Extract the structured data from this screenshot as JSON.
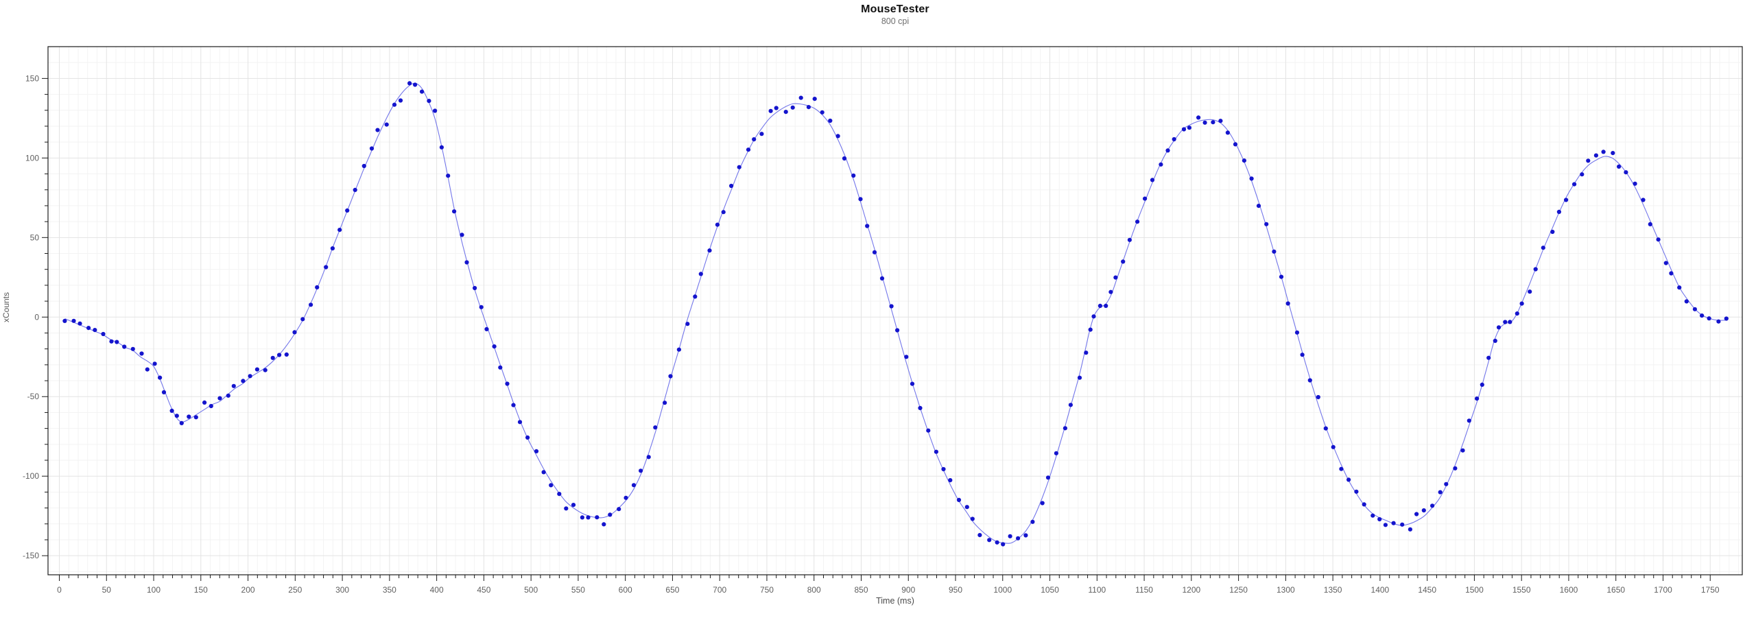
{
  "header": {
    "window_title": "MouseTester"
  },
  "chart_data": {
    "type": "scatter",
    "title": "MouseTester",
    "subtitle": "800 cpi",
    "xlabel": "Time (ms)",
    "ylabel": "xCounts",
    "xlim": [
      -12,
      1784
    ],
    "ylim": [
      -162,
      170
    ],
    "x_ticks": {
      "min": 0,
      "max": 1750,
      "major_step": 50,
      "minor_step": 10
    },
    "y_ticks": {
      "min": -150,
      "max": 150,
      "major_step": 50,
      "minor_step": 10
    },
    "grid": true,
    "legend_position": "none",
    "colors": {
      "marker": "#1414cd",
      "line": "#6467e8",
      "grid_major": "#e3e3e3",
      "grid_minor": "#f3f3f3",
      "axis": "#1a1a1a",
      "tick_label": "#5f5f5f"
    },
    "noise": {
      "seed": 20,
      "base_amp": 2.1,
      "peak_amp": 3.4,
      "outlier_rate": 0.09,
      "outlier_amp": 6.5,
      "t_jitter": 1.4
    },
    "series": [
      {
        "name": "xCounts",
        "anchors": [
          [
            6,
            -1
          ],
          [
            14,
            -3
          ],
          [
            22,
            -5
          ],
          [
            30,
            -7
          ],
          [
            38,
            -9
          ],
          [
            46,
            -11
          ],
          [
            54,
            -14
          ],
          [
            62,
            -16
          ],
          [
            70,
            -19
          ],
          [
            78,
            -21
          ],
          [
            86,
            -25
          ],
          [
            94,
            -28
          ],
          [
            100,
            -31
          ],
          [
            106,
            -38
          ],
          [
            112,
            -47
          ],
          [
            118,
            -56
          ],
          [
            124,
            -63
          ],
          [
            130,
            -66
          ],
          [
            138,
            -64
          ],
          [
            146,
            -61
          ],
          [
            154,
            -58
          ],
          [
            162,
            -55
          ],
          [
            170,
            -53
          ],
          [
            178,
            -49
          ],
          [
            186,
            -45
          ],
          [
            194,
            -42
          ],
          [
            202,
            -38
          ],
          [
            210,
            -35
          ],
          [
            218,
            -32
          ],
          [
            226,
            -28
          ],
          [
            234,
            -23
          ],
          [
            242,
            -17
          ],
          [
            250,
            -10
          ],
          [
            258,
            -2
          ],
          [
            266,
            8
          ],
          [
            274,
            19
          ],
          [
            282,
            31
          ],
          [
            290,
            44
          ],
          [
            298,
            56
          ],
          [
            306,
            68
          ],
          [
            314,
            80
          ],
          [
            322,
            92
          ],
          [
            330,
            103
          ],
          [
            338,
            114
          ],
          [
            346,
            124
          ],
          [
            354,
            133
          ],
          [
            362,
            140
          ],
          [
            370,
            145
          ],
          [
            377,
            147
          ],
          [
            384,
            144
          ],
          [
            391,
            136
          ],
          [
            398,
            125
          ],
          [
            405,
            108
          ],
          [
            412,
            88
          ],
          [
            419,
            67
          ],
          [
            426,
            49
          ],
          [
            433,
            33
          ],
          [
            440,
            18
          ],
          [
            447,
            5
          ],
          [
            454,
            -7
          ],
          [
            461,
            -19
          ],
          [
            468,
            -31
          ],
          [
            475,
            -43
          ],
          [
            482,
            -55
          ],
          [
            489,
            -66
          ],
          [
            497,
            -77
          ],
          [
            505,
            -86
          ],
          [
            513,
            -95
          ],
          [
            521,
            -103
          ],
          [
            529,
            -110
          ],
          [
            537,
            -116
          ],
          [
            545,
            -120
          ],
          [
            553,
            -123
          ],
          [
            561,
            -125
          ],
          [
            569,
            -126
          ],
          [
            577,
            -126
          ],
          [
            585,
            -124
          ],
          [
            593,
            -120
          ],
          [
            601,
            -115
          ],
          [
            609,
            -108
          ],
          [
            617,
            -98
          ],
          [
            625,
            -85
          ],
          [
            633,
            -70
          ],
          [
            641,
            -53
          ],
          [
            649,
            -36
          ],
          [
            657,
            -20
          ],
          [
            665,
            -3
          ],
          [
            673,
            12
          ],
          [
            681,
            27
          ],
          [
            689,
            42
          ],
          [
            697,
            56
          ],
          [
            705,
            69
          ],
          [
            713,
            81
          ],
          [
            721,
            93
          ],
          [
            729,
            103
          ],
          [
            737,
            112
          ],
          [
            745,
            119
          ],
          [
            753,
            125
          ],
          [
            761,
            129
          ],
          [
            769,
            132
          ],
          [
            777,
            134
          ],
          [
            785,
            134
          ],
          [
            793,
            133
          ],
          [
            801,
            131
          ],
          [
            809,
            127
          ],
          [
            817,
            121
          ],
          [
            825,
            112
          ],
          [
            833,
            101
          ],
          [
            841,
            88
          ],
          [
            849,
            73
          ],
          [
            857,
            57
          ],
          [
            865,
            41
          ],
          [
            873,
            24
          ],
          [
            881,
            7
          ],
          [
            889,
            -10
          ],
          [
            897,
            -27
          ],
          [
            905,
            -43
          ],
          [
            913,
            -58
          ],
          [
            921,
            -72
          ],
          [
            929,
            -85
          ],
          [
            937,
            -96
          ],
          [
            945,
            -106
          ],
          [
            953,
            -115
          ],
          [
            961,
            -122
          ],
          [
            969,
            -129
          ],
          [
            977,
            -134
          ],
          [
            985,
            -138
          ],
          [
            993,
            -141
          ],
          [
            1001,
            -142
          ],
          [
            1009,
            -142
          ],
          [
            1017,
            -139
          ],
          [
            1025,
            -134
          ],
          [
            1033,
            -126
          ],
          [
            1041,
            -115
          ],
          [
            1049,
            -102
          ],
          [
            1057,
            -87
          ],
          [
            1065,
            -71
          ],
          [
            1073,
            -54
          ],
          [
            1081,
            -37
          ],
          [
            1087,
            -22
          ],
          [
            1092,
            -9
          ],
          [
            1097,
            1
          ],
          [
            1103,
            6
          ],
          [
            1109,
            8
          ],
          [
            1115,
            14
          ],
          [
            1121,
            24
          ],
          [
            1128,
            36
          ],
          [
            1135,
            48
          ],
          [
            1143,
            61
          ],
          [
            1151,
            73
          ],
          [
            1159,
            85
          ],
          [
            1167,
            96
          ],
          [
            1175,
            105
          ],
          [
            1183,
            112
          ],
          [
            1191,
            118
          ],
          [
            1199,
            121
          ],
          [
            1207,
            123
          ],
          [
            1215,
            124
          ],
          [
            1223,
            124
          ],
          [
            1231,
            122
          ],
          [
            1239,
            117
          ],
          [
            1247,
            109
          ],
          [
            1255,
            99
          ],
          [
            1263,
            87
          ],
          [
            1271,
            73
          ],
          [
            1279,
            58
          ],
          [
            1287,
            42
          ],
          [
            1295,
            26
          ],
          [
            1303,
            9
          ],
          [
            1311,
            -8
          ],
          [
            1319,
            -25
          ],
          [
            1327,
            -41
          ],
          [
            1335,
            -56
          ],
          [
            1343,
            -70
          ],
          [
            1351,
            -82
          ],
          [
            1359,
            -93
          ],
          [
            1367,
            -103
          ],
          [
            1375,
            -111
          ],
          [
            1383,
            -118
          ],
          [
            1391,
            -123
          ],
          [
            1399,
            -126
          ],
          [
            1407,
            -128
          ],
          [
            1415,
            -130
          ],
          [
            1423,
            -131
          ],
          [
            1431,
            -130
          ],
          [
            1439,
            -128
          ],
          [
            1447,
            -125
          ],
          [
            1455,
            -120
          ],
          [
            1463,
            -114
          ],
          [
            1471,
            -105
          ],
          [
            1479,
            -94
          ],
          [
            1487,
            -81
          ],
          [
            1495,
            -67
          ],
          [
            1503,
            -53
          ],
          [
            1509,
            -41
          ],
          [
            1515,
            -28
          ],
          [
            1521,
            -15
          ],
          [
            1527,
            -7
          ],
          [
            1533,
            -4
          ],
          [
            1539,
            -3
          ],
          [
            1545,
            2
          ],
          [
            1551,
            10
          ],
          [
            1558,
            20
          ],
          [
            1566,
            32
          ],
          [
            1574,
            44
          ],
          [
            1582,
            55
          ],
          [
            1590,
            66
          ],
          [
            1598,
            76
          ],
          [
            1606,
            84
          ],
          [
            1614,
            91
          ],
          [
            1622,
            96
          ],
          [
            1630,
            99
          ],
          [
            1638,
            101
          ],
          [
            1646,
            100
          ],
          [
            1654,
            96
          ],
          [
            1662,
            90
          ],
          [
            1670,
            82
          ],
          [
            1678,
            72
          ],
          [
            1686,
            61
          ],
          [
            1694,
            50
          ],
          [
            1702,
            39
          ],
          [
            1710,
            28
          ],
          [
            1718,
            18
          ],
          [
            1726,
            11
          ],
          [
            1734,
            5
          ],
          [
            1742,
            1
          ],
          [
            1750,
            -1
          ],
          [
            1758,
            -2
          ],
          [
            1766,
            -2
          ]
        ]
      }
    ]
  }
}
